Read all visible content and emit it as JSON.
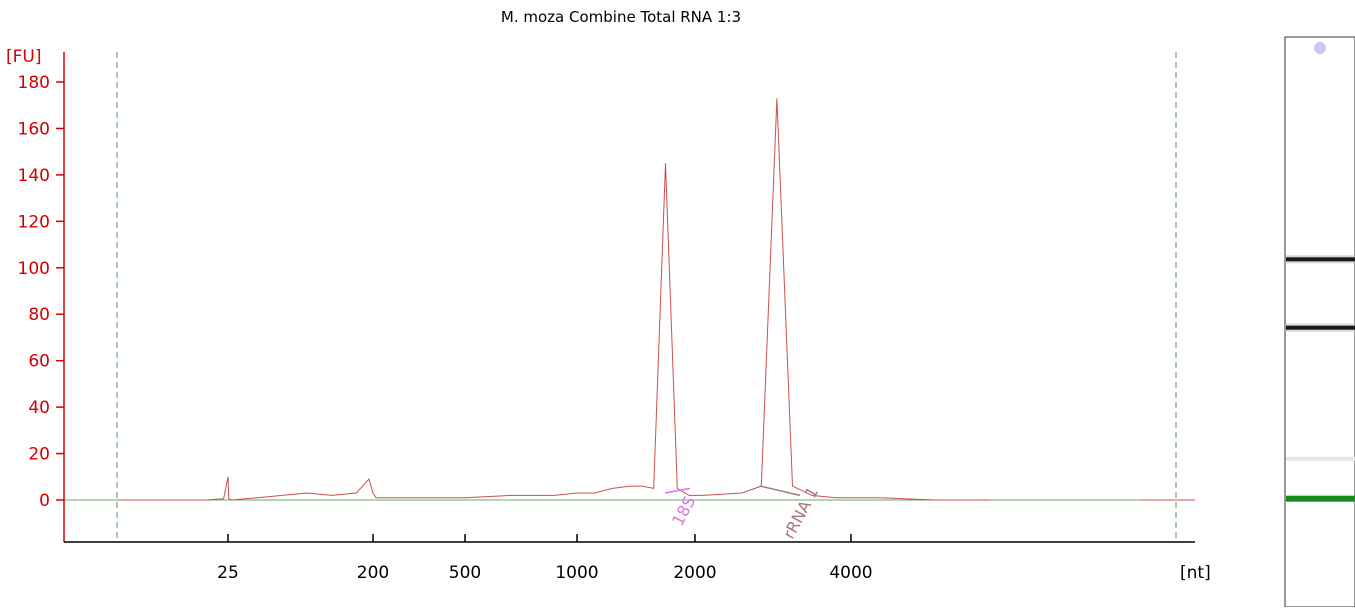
{
  "chart_data": {
    "type": "line",
    "title": "M. moza Combine Total RNA 1:3",
    "ylabel": "[FU]",
    "xlabel": "[nt]",
    "ylim": [
      -18,
      192
    ],
    "y_ticks": [
      0,
      20,
      40,
      60,
      80,
      100,
      120,
      140,
      160,
      180
    ],
    "x_scale": "nonlinear (electropherogram size axis)",
    "x_ticks": [
      25,
      200,
      500,
      1000,
      2000,
      4000
    ],
    "grid": false,
    "colors": {
      "axis_y": "#d40000",
      "axis_x": "#000000",
      "trace": "#c9504f",
      "baseline": "#6aaa6a",
      "marker_lines": "#4f9a4f",
      "label_18s": "#e070e0",
      "label_rrna": "#a07a80",
      "gel_band_dark": "#1a1a1a",
      "gel_marker_band": "#1a8a1a"
    },
    "series": [
      {
        "values_note": "fluorescence trace",
        "points": [
          [
            0,
            0
          ],
          [
            20,
            0
          ],
          [
            24,
            0.5
          ],
          [
            25,
            10
          ],
          [
            26,
            0.5
          ],
          [
            30,
            0
          ],
          [
            60,
            1
          ],
          [
            90,
            2
          ],
          [
            120,
            3
          ],
          [
            150,
            2
          ],
          [
            180,
            3
          ],
          [
            195,
            9
          ],
          [
            200,
            3
          ],
          [
            210,
            1
          ],
          [
            300,
            1
          ],
          [
            500,
            1
          ],
          [
            700,
            2
          ],
          [
            900,
            2
          ],
          [
            1000,
            3
          ],
          [
            1150,
            3
          ],
          [
            1300,
            5
          ],
          [
            1450,
            6
          ],
          [
            1550,
            6
          ],
          [
            1650,
            5
          ],
          [
            1750,
            145
          ],
          [
            1850,
            5
          ],
          [
            1950,
            2
          ],
          [
            2100,
            2
          ],
          [
            2600,
            3
          ],
          [
            2850,
            6
          ],
          [
            3050,
            173
          ],
          [
            3250,
            6
          ],
          [
            3500,
            2
          ],
          [
            3800,
            1
          ],
          [
            4200,
            1
          ],
          [
            4500,
            1
          ],
          [
            5500,
            0
          ],
          [
            6500,
            0
          ]
        ]
      }
    ],
    "annotations": [
      {
        "text": "18S",
        "at_nt": 1800
      },
      {
        "text": "rRNA 1",
        "at_nt": 3300
      }
    ],
    "gel_lane": {
      "bands": [
        {
          "kind": "dark",
          "level_fraction": 0.39
        },
        {
          "kind": "dark",
          "level_fraction": 0.51
        },
        {
          "kind": "faint",
          "level_fraction": 0.74
        },
        {
          "kind": "marker",
          "level_fraction": 0.81
        }
      ]
    }
  }
}
